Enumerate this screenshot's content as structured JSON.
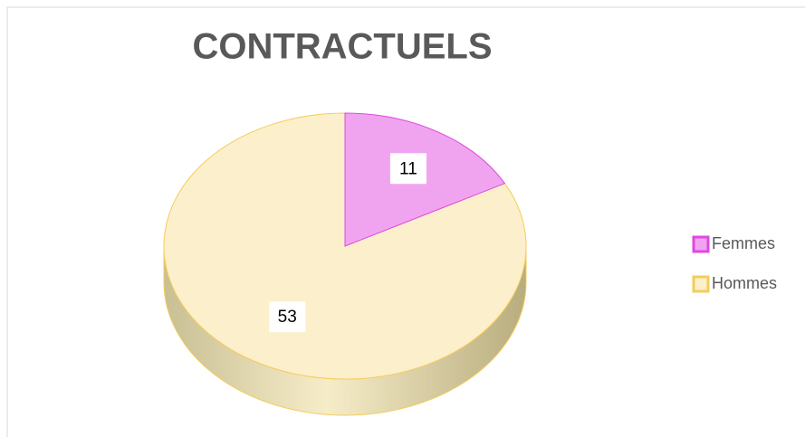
{
  "chart_data": {
    "type": "pie",
    "title": "CONTRACTUELS",
    "categories": [
      "Femmes",
      "Hommes"
    ],
    "values": [
      11,
      53
    ],
    "colors": [
      "#f0a4f0",
      "#fcefcc"
    ],
    "edge_colors": [
      "#e048e0",
      "#f5cc5a"
    ],
    "legend": "right"
  }
}
